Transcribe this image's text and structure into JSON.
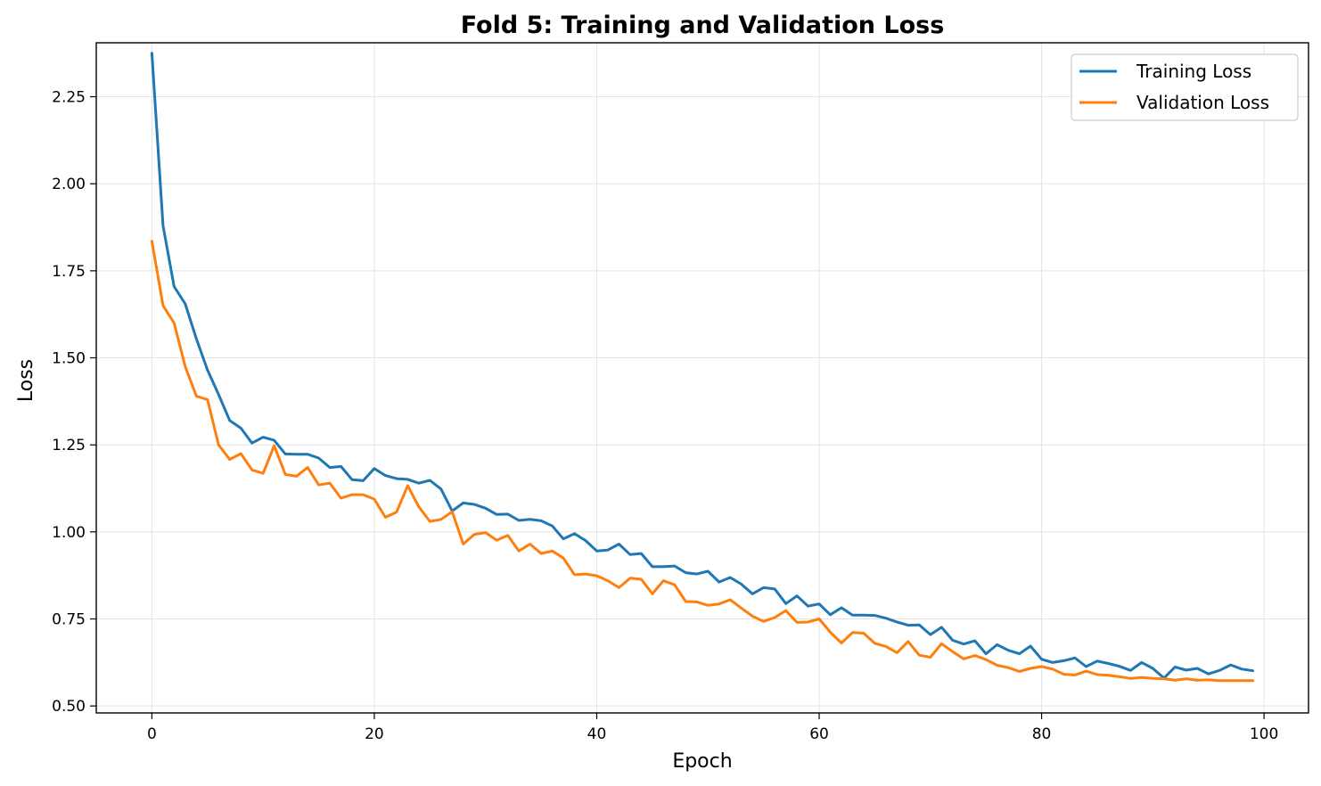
{
  "chart_data": {
    "type": "line",
    "title": "Fold 5: Training and Validation Loss",
    "xlabel": "Epoch",
    "ylabel": "Loss",
    "xlim": [
      -5,
      104
    ],
    "ylim": [
      0.48,
      2.405
    ],
    "xticks": [
      0,
      20,
      40,
      60,
      80,
      100
    ],
    "yticks": [
      0.5,
      0.75,
      1.0,
      1.25,
      1.5,
      1.75,
      2.0,
      2.25
    ],
    "ytick_labels": [
      "0.50",
      "0.75",
      "1.00",
      "1.25",
      "1.50",
      "1.75",
      "2.00",
      "2.25"
    ],
    "grid": true,
    "legend_position": "top-right",
    "series": [
      {
        "name": "Training Loss",
        "color": "#1f77b4",
        "values": [
          2.375,
          1.88,
          1.705,
          1.655,
          1.555,
          1.465,
          1.395,
          1.32,
          1.298,
          1.255,
          1.272,
          1.263,
          1.224,
          1.223,
          1.223,
          1.212,
          1.185,
          1.188,
          1.15,
          1.147,
          1.182,
          1.162,
          1.153,
          1.151,
          1.14,
          1.148,
          1.123,
          1.06,
          1.083,
          1.079,
          1.068,
          1.05,
          1.051,
          1.033,
          1.036,
          1.032,
          1.017,
          0.98,
          0.995,
          0.975,
          0.945,
          0.948,
          0.965,
          0.935,
          0.938,
          0.9,
          0.9,
          0.902,
          0.883,
          0.879,
          0.887,
          0.856,
          0.869,
          0.85,
          0.822,
          0.84,
          0.836,
          0.794,
          0.816,
          0.787,
          0.793,
          0.762,
          0.782,
          0.761,
          0.761,
          0.76,
          0.752,
          0.741,
          0.732,
          0.733,
          0.705,
          0.726,
          0.689,
          0.678,
          0.687,
          0.65,
          0.676,
          0.66,
          0.65,
          0.672,
          0.634,
          0.625,
          0.63,
          0.638,
          0.613,
          0.629,
          0.622,
          0.614,
          0.602,
          0.625,
          0.608,
          0.58,
          0.612,
          0.603,
          0.608,
          0.592,
          0.602,
          0.618,
          0.606,
          0.601
        ]
      },
      {
        "name": "Validation Loss",
        "color": "#ff7f0e",
        "values": [
          1.835,
          1.65,
          1.6,
          1.475,
          1.39,
          1.38,
          1.25,
          1.208,
          1.225,
          1.178,
          1.168,
          1.248,
          1.165,
          1.16,
          1.185,
          1.135,
          1.14,
          1.097,
          1.107,
          1.107,
          1.094,
          1.042,
          1.057,
          1.133,
          1.072,
          1.03,
          1.036,
          1.058,
          0.965,
          0.993,
          0.998,
          0.976,
          0.99,
          0.945,
          0.965,
          0.938,
          0.945,
          0.925,
          0.877,
          0.879,
          0.874,
          0.86,
          0.84,
          0.867,
          0.864,
          0.822,
          0.86,
          0.848,
          0.8,
          0.799,
          0.789,
          0.793,
          0.805,
          0.781,
          0.758,
          0.743,
          0.754,
          0.774,
          0.74,
          0.741,
          0.75,
          0.712,
          0.681,
          0.711,
          0.709,
          0.68,
          0.671,
          0.653,
          0.685,
          0.646,
          0.64,
          0.679,
          0.656,
          0.635,
          0.645,
          0.633,
          0.617,
          0.61,
          0.599,
          0.608,
          0.613,
          0.606,
          0.591,
          0.589,
          0.6,
          0.59,
          0.588,
          0.584,
          0.579,
          0.582,
          0.579,
          0.578,
          0.574,
          0.578,
          0.574,
          0.575,
          0.573,
          0.573,
          0.573,
          0.573
        ]
      }
    ]
  }
}
